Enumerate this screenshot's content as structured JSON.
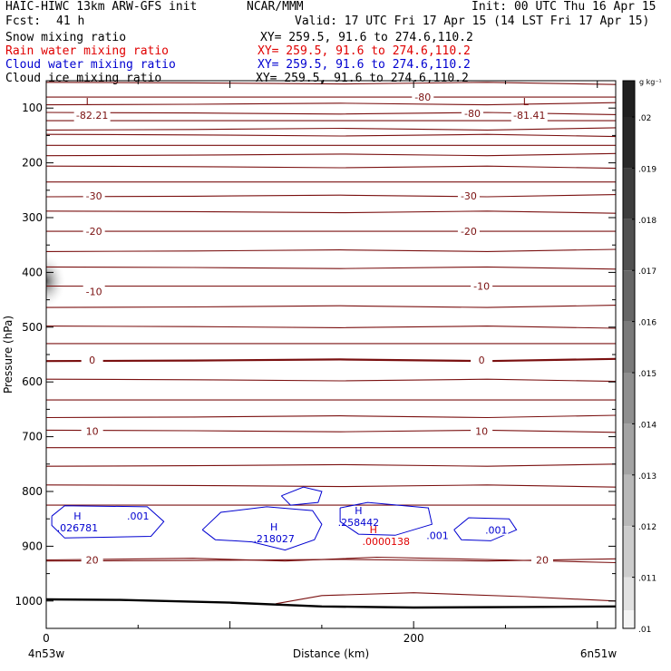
{
  "header": {
    "model": "HAIC-HIWC 13km ARW-GFS init",
    "center": "NCAR/MMM",
    "init": "Init: 00 UTC Thu 16 Apr 15",
    "fcst_label": "Fcst:",
    "fcst_value": "41 h",
    "valid": "Valid: 17 UTC Fri 17 Apr 15 (14 LST Fri 17 Apr 15)",
    "fields": [
      {
        "name": "Snow mixing ratio",
        "xy": "XY= 259.5, 91.6 to 274.6,110.2",
        "color": "#000000"
      },
      {
        "name": "Rain water mixing ratio",
        "xy": "XY= 259.5, 91.6 to 274.6,110.2",
        "color": "#e00000"
      },
      {
        "name": "Cloud water mixing ratio",
        "xy": "XY= 259.5, 91.6 to 274.6,110.2",
        "color": "#0000d0"
      },
      {
        "name": "Cloud ice mixing ratio",
        "xy": "XY= 259.5, 91.6 to 274.6,110.2",
        "color": "#000000"
      }
    ]
  },
  "chart_data": {
    "type": "contour cross-section",
    "xlabel": "Distance (km)",
    "ylabel": "Pressure (hPa)",
    "xlim": [
      0,
      310
    ],
    "ylim": [
      1050,
      50
    ],
    "x_ticks": [
      0,
      200
    ],
    "y_ticks": [
      100,
      200,
      300,
      400,
      500,
      600,
      700,
      800,
      900,
      1000
    ],
    "left_endpoint": "4n53w",
    "right_endpoint": "6n51w",
    "colorbar": {
      "unit": "g kg⁻¹",
      "labels": [
        ".02",
        ".019",
        ".018",
        ".017",
        ".016",
        ".015",
        ".014",
        ".013",
        ".012",
        ".011",
        ".01"
      ],
      "top_color": "#202020",
      "bottom_color": "#f4f4f4"
    },
    "temperature_contours": {
      "color": "#7a1010",
      "labels": [
        {
          "text": "-80",
          "x": 205,
          "p": 80
        },
        {
          "text": "-80",
          "x": 232,
          "p": 110
        },
        {
          "text": "-30",
          "x": 26,
          "p": 260
        },
        {
          "text": "-30",
          "x": 230,
          "p": 260
        },
        {
          "text": "-20",
          "x": 26,
          "p": 325
        },
        {
          "text": "-20",
          "x": 230,
          "p": 325
        },
        {
          "text": "-10",
          "x": 26,
          "p": 435
        },
        {
          "text": "-10",
          "x": 237,
          "p": 425
        },
        {
          "text": "0",
          "x": 25,
          "p": 560
        },
        {
          "text": "0",
          "x": 237,
          "p": 560
        },
        {
          "text": "10",
          "x": 25,
          "p": 690
        },
        {
          "text": "10",
          "x": 237,
          "p": 690
        },
        {
          "text": "20",
          "x": 25,
          "p": 925
        },
        {
          "text": "20",
          "x": 270,
          "p": 925
        }
      ],
      "extrema": [
        {
          "symbol": "L",
          "value": "-82.21",
          "x": 25,
          "p": 105
        },
        {
          "symbol": "L",
          "value": "-81.41",
          "x": 263,
          "p": 105
        }
      ]
    },
    "cloud_water": {
      "color": "#0000d0",
      "contour_labels": [
        {
          "text": ".001",
          "x": 50,
          "p": 845
        },
        {
          "text": ".001",
          "x": 213,
          "p": 880
        },
        {
          "text": ".001",
          "x": 245,
          "p": 870
        }
      ],
      "maxima": [
        {
          "symbol": "H",
          "value": ".026781",
          "x": 17,
          "p": 868
        },
        {
          "symbol": "H",
          "value": ".218027",
          "x": 124,
          "p": 888
        },
        {
          "symbol": "H",
          "value": ".258442",
          "x": 170,
          "p": 858
        }
      ]
    },
    "rain_water": {
      "color": "#e00000",
      "maxima": [
        {
          "symbol": "H",
          "value": ".0000138",
          "x": 185,
          "p": 893
        }
      ]
    },
    "terrain": {
      "color": "#000000"
    }
  }
}
